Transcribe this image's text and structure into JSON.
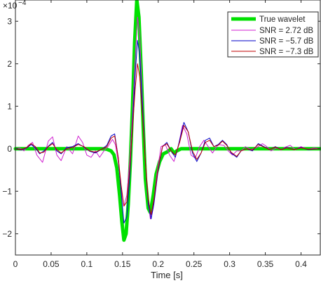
{
  "chart_data": {
    "type": "line",
    "title": "",
    "xlabel": "Time [s]",
    "ylabel": "",
    "y_exponent_label": "×10",
    "y_exponent": "−4",
    "xlim": [
      0,
      0.427
    ],
    "ylim": [
      -2.5,
      3.5
    ],
    "x_ticks": [
      0,
      0.05,
      0.1,
      0.15,
      0.2,
      0.25,
      0.3,
      0.35,
      0.4
    ],
    "x_tick_labels": [
      "0",
      "0.05",
      "0.1",
      "0.15",
      "0.2",
      "0.25",
      "0.3",
      "0.35",
      "0.4"
    ],
    "y_ticks": [
      -2,
      -1,
      0,
      1,
      2,
      3
    ],
    "y_tick_labels": [
      "−2",
      "−1",
      "0",
      "1",
      "2",
      "3"
    ],
    "grid": false,
    "legend_position": "top-right",
    "series": [
      {
        "name": "True wavelet",
        "color": "#00e000",
        "line_width": "thick",
        "points": [
          [
            0,
            0
          ],
          [
            0.12,
            0
          ],
          [
            0.128,
            -0.01
          ],
          [
            0.134,
            -0.05
          ],
          [
            0.138,
            -0.14
          ],
          [
            0.142,
            -0.45
          ],
          [
            0.146,
            -1.1
          ],
          [
            0.149,
            -1.7
          ],
          [
            0.152,
            -2.15
          ],
          [
            0.155,
            -2.0
          ],
          [
            0.158,
            -1.3
          ],
          [
            0.161,
            -0.3
          ],
          [
            0.164,
            1.0
          ],
          [
            0.167,
            2.5
          ],
          [
            0.17,
            3.5
          ],
          [
            0.173,
            3.1
          ],
          [
            0.176,
            1.9
          ],
          [
            0.179,
            0.5
          ],
          [
            0.182,
            -0.7
          ],
          [
            0.186,
            -1.4
          ],
          [
            0.189,
            -1.5
          ],
          [
            0.193,
            -1.1
          ],
          [
            0.197,
            -0.6
          ],
          [
            0.202,
            -0.3
          ],
          [
            0.207,
            -0.12
          ],
          [
            0.213,
            -0.07
          ],
          [
            0.218,
            0
          ],
          [
            0.222,
            -0.1
          ],
          [
            0.226,
            -0.05
          ],
          [
            0.232,
            0
          ],
          [
            0.427,
            0
          ]
        ]
      },
      {
        "name": "SNR = 2.72 dB",
        "color": "#d01fd0",
        "line_width": "thin",
        "points": [
          [
            0,
            0
          ],
          [
            0.006,
            0.02
          ],
          [
            0.012,
            -0.05
          ],
          [
            0.018,
            0.08
          ],
          [
            0.024,
            0.15
          ],
          [
            0.03,
            -0.15
          ],
          [
            0.038,
            -0.32
          ],
          [
            0.046,
            0.18
          ],
          [
            0.052,
            0.28
          ],
          [
            0.058,
            -0.15
          ],
          [
            0.064,
            -0.28
          ],
          [
            0.072,
            0.05
          ],
          [
            0.08,
            -0.12
          ],
          [
            0.088,
            0.3
          ],
          [
            0.094,
            0.15
          ],
          [
            0.1,
            -0.15
          ],
          [
            0.106,
            -0.2
          ],
          [
            0.112,
            -0.05
          ],
          [
            0.118,
            -0.2
          ],
          [
            0.124,
            -0.05
          ],
          [
            0.13,
            0.06
          ],
          [
            0.136,
            0.22
          ],
          [
            0.14,
            0.1
          ],
          [
            0.144,
            -0.3
          ],
          [
            0.148,
            -0.95
          ],
          [
            0.152,
            -1.35
          ],
          [
            0.156,
            -1.1
          ],
          [
            0.16,
            -0.3
          ],
          [
            0.164,
            0.8
          ],
          [
            0.168,
            2.2
          ],
          [
            0.171,
            3.1
          ],
          [
            0.174,
            2.7
          ],
          [
            0.177,
            1.5
          ],
          [
            0.181,
            0
          ],
          [
            0.185,
            -1.1
          ],
          [
            0.189,
            -1.65
          ],
          [
            0.193,
            -1.4
          ],
          [
            0.198,
            -0.6
          ],
          [
            0.204,
            0.05
          ],
          [
            0.21,
            0.1
          ],
          [
            0.216,
            -0.15
          ],
          [
            0.222,
            -0.3
          ],
          [
            0.228,
            0.05
          ],
          [
            0.234,
            0.55
          ],
          [
            0.24,
            0.35
          ],
          [
            0.246,
            -0.15
          ],
          [
            0.252,
            -0.22
          ],
          [
            0.258,
            0.05
          ],
          [
            0.264,
            0.2
          ],
          [
            0.27,
            0.05
          ],
          [
            0.276,
            -0.1
          ],
          [
            0.284,
            0.1
          ],
          [
            0.292,
            0.08
          ],
          [
            0.298,
            -0.05
          ],
          [
            0.304,
            -0.15
          ],
          [
            0.31,
            -0.05
          ],
          [
            0.316,
            -0.05
          ],
          [
            0.322,
            0.05
          ],
          [
            0.33,
            -0.02
          ],
          [
            0.338,
            0.03
          ],
          [
            0.346,
            0.12
          ],
          [
            0.352,
            0.05
          ],
          [
            0.358,
            -0.05
          ],
          [
            0.366,
            0.02
          ],
          [
            0.372,
            -0.03
          ],
          [
            0.378,
            0.04
          ],
          [
            0.385,
            0.08
          ],
          [
            0.392,
            -0.02
          ],
          [
            0.4,
            0.05
          ],
          [
            0.41,
            -0.02
          ],
          [
            0.418,
            0.02
          ],
          [
            0.427,
            0
          ]
        ]
      },
      {
        "name": "SNR = −5.7 dB",
        "color": "#0000c8",
        "line_width": "thin",
        "points": [
          [
            0,
            0
          ],
          [
            0.008,
            -0.03
          ],
          [
            0.016,
            0.02
          ],
          [
            0.022,
            0.1
          ],
          [
            0.028,
            0.02
          ],
          [
            0.034,
            -0.12
          ],
          [
            0.04,
            -0.05
          ],
          [
            0.046,
            0.06
          ],
          [
            0.052,
            0.15
          ],
          [
            0.058,
            -0.05
          ],
          [
            0.064,
            -0.12
          ],
          [
            0.072,
            0.03
          ],
          [
            0.08,
            0.05
          ],
          [
            0.088,
            0.12
          ],
          [
            0.096,
            0.04
          ],
          [
            0.104,
            -0.06
          ],
          [
            0.112,
            -0.1
          ],
          [
            0.12,
            -0.02
          ],
          [
            0.128,
            0.08
          ],
          [
            0.134,
            0.3
          ],
          [
            0.139,
            0.35
          ],
          [
            0.144,
            -0.2
          ],
          [
            0.148,
            -1.0
          ],
          [
            0.152,
            -1.75
          ],
          [
            0.156,
            -1.6
          ],
          [
            0.16,
            -0.7
          ],
          [
            0.164,
            0.6
          ],
          [
            0.168,
            1.8
          ],
          [
            0.171,
            2.55
          ],
          [
            0.174,
            2.2
          ],
          [
            0.178,
            1.0
          ],
          [
            0.182,
            -0.3
          ],
          [
            0.186,
            -1.3
          ],
          [
            0.19,
            -1.65
          ],
          [
            0.194,
            -1.3
          ],
          [
            0.2,
            -0.5
          ],
          [
            0.206,
            0.05
          ],
          [
            0.212,
            0.15
          ],
          [
            0.218,
            -0.05
          ],
          [
            0.224,
            -0.2
          ],
          [
            0.23,
            0.2
          ],
          [
            0.236,
            0.62
          ],
          [
            0.242,
            0.4
          ],
          [
            0.248,
            -0.1
          ],
          [
            0.254,
            -0.3
          ],
          [
            0.26,
            -0.1
          ],
          [
            0.266,
            0.2
          ],
          [
            0.272,
            0.25
          ],
          [
            0.278,
            0.05
          ],
          [
            0.284,
            0.1
          ],
          [
            0.29,
            0.2
          ],
          [
            0.296,
            0.1
          ],
          [
            0.302,
            -0.1
          ],
          [
            0.31,
            -0.2
          ],
          [
            0.316,
            -0.05
          ],
          [
            0.324,
            0
          ],
          [
            0.332,
            -0.05
          ],
          [
            0.34,
            0.12
          ],
          [
            0.348,
            0.05
          ],
          [
            0.356,
            -0.02
          ],
          [
            0.364,
            0.05
          ],
          [
            0.372,
            -0.02
          ],
          [
            0.38,
            0.03
          ],
          [
            0.39,
            -0.02
          ],
          [
            0.4,
            0.03
          ],
          [
            0.41,
            -0.02
          ],
          [
            0.427,
            0
          ]
        ]
      },
      {
        "name": "SNR = −7.3 dB",
        "color": "#c00000",
        "line_width": "thin",
        "points": [
          [
            0,
            0
          ],
          [
            0.008,
            -0.02
          ],
          [
            0.016,
            0.03
          ],
          [
            0.022,
            0.12
          ],
          [
            0.028,
            0.05
          ],
          [
            0.034,
            -0.1
          ],
          [
            0.04,
            -0.08
          ],
          [
            0.046,
            0.05
          ],
          [
            0.052,
            0.12
          ],
          [
            0.058,
            -0.02
          ],
          [
            0.064,
            -0.1
          ],
          [
            0.072,
            0.0
          ],
          [
            0.08,
            0.03
          ],
          [
            0.088,
            0.1
          ],
          [
            0.096,
            0.05
          ],
          [
            0.104,
            -0.05
          ],
          [
            0.112,
            -0.08
          ],
          [
            0.12,
            -0.02
          ],
          [
            0.128,
            0.05
          ],
          [
            0.134,
            0.25
          ],
          [
            0.139,
            0.3
          ],
          [
            0.144,
            -0.2
          ],
          [
            0.148,
            -0.85
          ],
          [
            0.152,
            -1.35
          ],
          [
            0.156,
            -1.25
          ],
          [
            0.16,
            -0.5
          ],
          [
            0.164,
            0.5
          ],
          [
            0.168,
            1.45
          ],
          [
            0.171,
            2.0
          ],
          [
            0.174,
            1.7
          ],
          [
            0.178,
            0.8
          ],
          [
            0.182,
            -0.3
          ],
          [
            0.186,
            -1.2
          ],
          [
            0.19,
            -1.55
          ],
          [
            0.194,
            -1.2
          ],
          [
            0.2,
            -0.45
          ],
          [
            0.206,
            0.05
          ],
          [
            0.212,
            0.12
          ],
          [
            0.218,
            -0.05
          ],
          [
            0.224,
            -0.15
          ],
          [
            0.23,
            0.15
          ],
          [
            0.236,
            0.55
          ],
          [
            0.242,
            0.4
          ],
          [
            0.248,
            -0.05
          ],
          [
            0.254,
            -0.25
          ],
          [
            0.26,
            -0.1
          ],
          [
            0.266,
            0.15
          ],
          [
            0.272,
            0.2
          ],
          [
            0.278,
            0.05
          ],
          [
            0.284,
            0.08
          ],
          [
            0.29,
            0.18
          ],
          [
            0.296,
            0.08
          ],
          [
            0.302,
            -0.08
          ],
          [
            0.31,
            -0.18
          ],
          [
            0.316,
            -0.05
          ],
          [
            0.324,
            0
          ],
          [
            0.332,
            -0.03
          ],
          [
            0.34,
            0.1
          ],
          [
            0.348,
            0.04
          ],
          [
            0.356,
            -0.02
          ],
          [
            0.364,
            0.04
          ],
          [
            0.372,
            -0.02
          ],
          [
            0.38,
            0.02
          ],
          [
            0.39,
            -0.02
          ],
          [
            0.4,
            0.02
          ],
          [
            0.41,
            -0.01
          ],
          [
            0.427,
            0
          ]
        ]
      }
    ]
  }
}
